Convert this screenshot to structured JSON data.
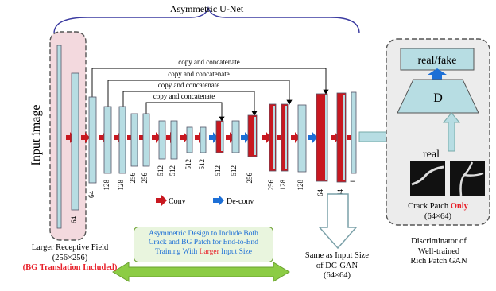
{
  "title": "Asymmetric U-Net",
  "input_label": "Input image",
  "skip_label": "copy and concatenate",
  "legend": {
    "conv": "Conv",
    "deconv": "De-conv"
  },
  "channels": [
    "64",
    "64",
    "128",
    "128",
    "256",
    "256",
    "512",
    "512",
    "512",
    "512",
    "512",
    "512",
    "256",
    "256",
    "128",
    "128",
    "64",
    "64",
    "1"
  ],
  "receptive": {
    "line1": "Larger Receptive Field",
    "line2": "(256×256)",
    "line3": "(BG Translation Included)"
  },
  "center_note": {
    "line1": "Asymmetric Design to Include Both",
    "line2": "Crack and BG Patch for End-to-End",
    "line3_a": "Training With ",
    "line3_b": "Larger",
    "line3_c": " Input Size"
  },
  "output_note": {
    "line1": "Same as Input Size",
    "line2": "of DC-GAN",
    "line3": "(64×64)"
  },
  "discriminator": {
    "output": "real/fake",
    "d_label": "D",
    "real_label": "real",
    "patch_a": "Crack Patch ",
    "patch_b": "Only",
    "size": "(64×64)",
    "caption1": "Discriminator of",
    "caption2": "Well-trained",
    "caption3": "Rich Patch GAN"
  },
  "colors": {
    "block": "#b7dde3",
    "block_dark": "#c81820",
    "conv_arrow": "#c81820",
    "deconv_arrow": "#1d6fd6",
    "pink": "#f3d9de",
    "green": "#8ccc45",
    "disc_bg": "#ececec",
    "accent_red": "#e8202a",
    "note_blue": "#1d6fd6"
  }
}
